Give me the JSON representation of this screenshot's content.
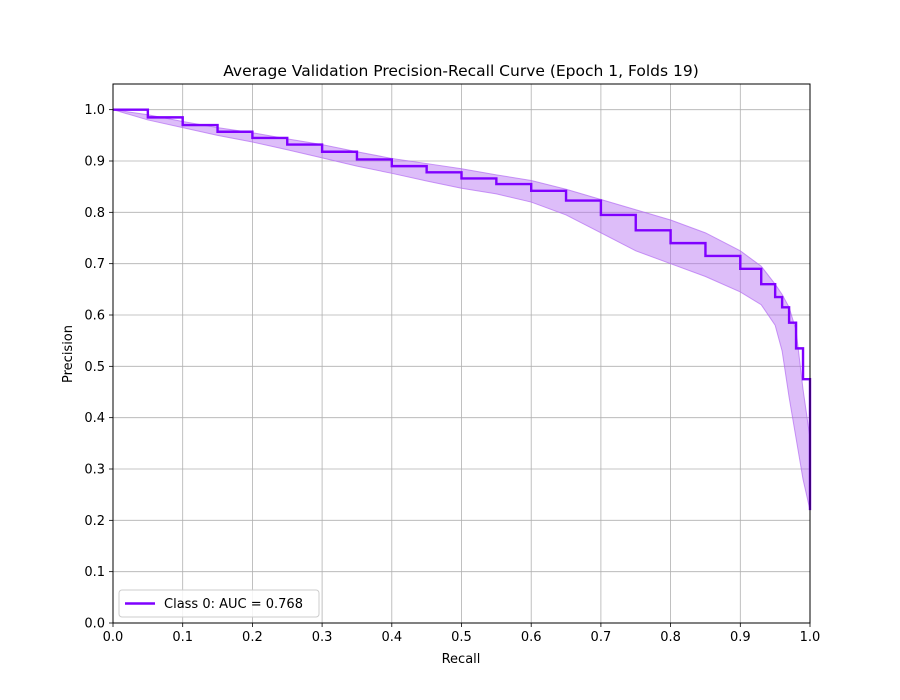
{
  "chart_data": {
    "type": "line",
    "title": "Average Validation Precision-Recall Curve (Epoch 1, Folds 19)",
    "xlabel": "Recall",
    "ylabel": "Precision",
    "xlim": [
      0.0,
      1.0
    ],
    "ylim": [
      0.0,
      1.05
    ],
    "grid": true,
    "legend_position": "lower-left",
    "xticks": [
      "0.0",
      "0.1",
      "0.2",
      "0.3",
      "0.4",
      "0.5",
      "0.6",
      "0.7",
      "0.8",
      "0.9",
      "1.0"
    ],
    "yticks": [
      "0.0",
      "0.1",
      "0.2",
      "0.3",
      "0.4",
      "0.5",
      "0.6",
      "0.7",
      "0.8",
      "0.9",
      "1.0"
    ],
    "series": [
      {
        "name": "Class 0: AUC = 0.768",
        "color": "#7f00ff",
        "band_color": "#b36cf2",
        "x": [
          0.0,
          0.05,
          0.1,
          0.15,
          0.2,
          0.25,
          0.3,
          0.35,
          0.4,
          0.45,
          0.5,
          0.55,
          0.6,
          0.65,
          0.7,
          0.75,
          0.8,
          0.85,
          0.9,
          0.93,
          0.95,
          0.96,
          0.97,
          0.98,
          0.99,
          1.0
        ],
        "y": [
          1.0,
          0.985,
          0.97,
          0.957,
          0.945,
          0.932,
          0.918,
          0.903,
          0.89,
          0.878,
          0.866,
          0.855,
          0.842,
          0.823,
          0.795,
          0.765,
          0.74,
          0.715,
          0.69,
          0.66,
          0.635,
          0.615,
          0.585,
          0.535,
          0.475,
          0.375
        ],
        "y_upper": [
          1.0,
          0.99,
          0.977,
          0.965,
          0.955,
          0.943,
          0.932,
          0.918,
          0.905,
          0.895,
          0.885,
          0.873,
          0.862,
          0.845,
          0.825,
          0.805,
          0.785,
          0.76,
          0.725,
          0.695,
          0.66,
          0.64,
          0.615,
          0.57,
          0.455,
          0.36
        ],
        "y_lower": [
          1.0,
          0.98,
          0.965,
          0.95,
          0.937,
          0.922,
          0.906,
          0.89,
          0.876,
          0.861,
          0.847,
          0.836,
          0.82,
          0.795,
          0.76,
          0.725,
          0.7,
          0.675,
          0.645,
          0.62,
          0.58,
          0.53,
          0.44,
          0.36,
          0.28,
          0.22
        ]
      }
    ]
  }
}
